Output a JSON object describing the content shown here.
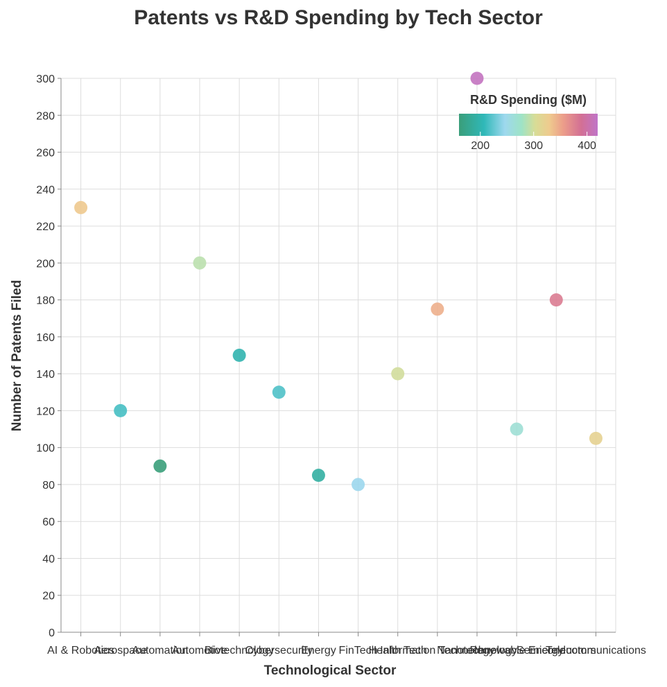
{
  "chart_data": {
    "type": "scatter",
    "title": "Patents vs R&D Spending by Tech Sector",
    "xlabel": "Technological Sector",
    "ylabel": "Number of Patents Filed",
    "ylim": [
      0,
      300
    ],
    "yticks": [
      0,
      20,
      40,
      60,
      80,
      100,
      120,
      140,
      160,
      180,
      200,
      220,
      240,
      260,
      280,
      300
    ],
    "grid": true,
    "categories": [
      "AI & Robotics",
      "Aerospace",
      "Automation",
      "Automotive",
      "Biotechnology",
      "Cybersecurity",
      "Energy",
      "FinTech",
      "Health Tech",
      "Information Technology",
      "Nanotechnology",
      "Renewable Energy",
      "Semiconductors",
      "Telecommunications"
    ],
    "points": [
      {
        "sector": "AI & Robotics",
        "patents": 230,
        "rd_spending": 330
      },
      {
        "sector": "Aerospace",
        "patents": 120,
        "rd_spending": 215
      },
      {
        "sector": "Automation",
        "patents": 90,
        "rd_spending": 160
      },
      {
        "sector": "Automotive",
        "patents": 200,
        "rd_spending": 290
      },
      {
        "sector": "Biotechnology",
        "patents": 150,
        "rd_spending": 200
      },
      {
        "sector": "Cybersecurity",
        "patents": 130,
        "rd_spending": 218
      },
      {
        "sector": "Energy",
        "patents": 85,
        "rd_spending": 190
      },
      {
        "sector": "FinTech",
        "patents": 80,
        "rd_spending": 245
      },
      {
        "sector": "Health Tech",
        "patents": 140,
        "rd_spending": 300
      },
      {
        "sector": "Information Technology",
        "patents": 175,
        "rd_spending": 345
      },
      {
        "sector": "Nanotechnology",
        "patents": 300,
        "rd_spending": 415
      },
      {
        "sector": "Renewable Energy",
        "patents": 110,
        "rd_spending": 265
      },
      {
        "sector": "Semiconductors",
        "patents": 180,
        "rd_spending": 380
      },
      {
        "sector": "Telecommunications",
        "patents": 105,
        "rd_spending": 320
      }
    ],
    "color_scale": {
      "title": "R&D Spending ($M)",
      "domain": [
        160,
        420
      ],
      "ticks": [
        200,
        300,
        400
      ],
      "stops": [
        {
          "offset": 0.0,
          "color": "#3a9e7a"
        },
        {
          "offset": 0.18,
          "color": "#2fb8b8"
        },
        {
          "offset": 0.33,
          "color": "#9ed8ee"
        },
        {
          "offset": 0.45,
          "color": "#9ee3c6"
        },
        {
          "offset": 0.55,
          "color": "#d8dc96"
        },
        {
          "offset": 0.65,
          "color": "#eecb8e"
        },
        {
          "offset": 0.75,
          "color": "#ec9e8a"
        },
        {
          "offset": 0.88,
          "color": "#d37094"
        },
        {
          "offset": 1.0,
          "color": "#c074c8"
        }
      ]
    },
    "legend_position": "top-right"
  }
}
